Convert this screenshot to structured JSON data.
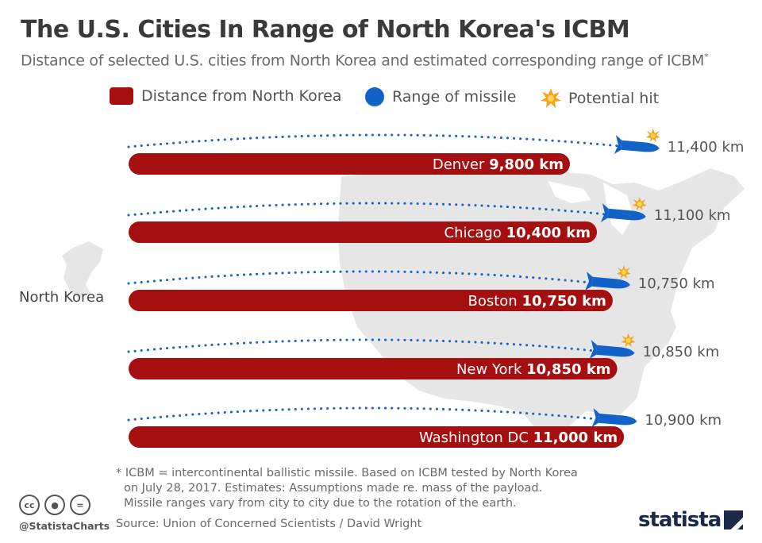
{
  "title": "The U.S. Cities In Range of North Korea's ICBM",
  "subtitle": "Distance of selected U.S. cities from North Korea and estimated corresponding range of ICBM",
  "subtitle_mark": "*",
  "legend": {
    "distance": "Distance from North Korea",
    "range": "Range of missile",
    "hit": "Potential hit"
  },
  "origin_label": "North Korea",
  "colors": {
    "bar": "#a50f0f",
    "missile": "#1262c8",
    "hit": "#f4a21b",
    "map": "#e6e6e6"
  },
  "chart_data": {
    "type": "bar",
    "orientation": "horizontal",
    "unit": "km",
    "categories": [
      "Denver",
      "Chicago",
      "Boston",
      "New York",
      "Washington DC"
    ],
    "series": [
      {
        "name": "Distance from North Korea",
        "values": [
          9800,
          10400,
          10750,
          10850,
          11000
        ],
        "labels": [
          "9,800 km",
          "10,400 km",
          "10,750 km",
          "10,850 km",
          "11,000 km"
        ]
      },
      {
        "name": "Range of missile",
        "values": [
          11400,
          11100,
          10750,
          10850,
          10900
        ],
        "labels": [
          "11,400 km",
          "11,100 km",
          "10,750 km",
          "10,850 km",
          "10,900 km"
        ]
      }
    ],
    "potential_hit": [
      true,
      true,
      true,
      true,
      false
    ]
  },
  "footnote": {
    "line1": "* ICBM = intercontinental ballistic missile. Based on ICBM tested by North Korea",
    "line2": "on July 28, 2017. Estimates: Assumptions made re. mass of the payload.",
    "line3": "Missile ranges vary from city to city due to the rotation of the earth."
  },
  "source": "Source: Union of Concerned Scientists / David Wright",
  "handle": "@StatistaCharts",
  "cc_icons": [
    "cc-icon",
    "attribution-icon",
    "no-derivatives-icon"
  ],
  "logo": "statista"
}
